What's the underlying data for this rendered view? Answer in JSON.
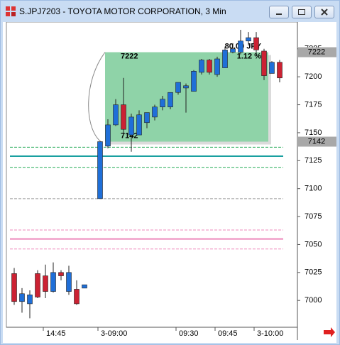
{
  "window": {
    "title": "S.JPJ7203 - TOYOTA MOTOR CORPORATION, 3 Min"
  },
  "chart_data": {
    "type": "candlestick",
    "categories": [
      null,
      null,
      null,
      null,
      "14:45",
      null,
      null,
      null,
      null,
      null,
      null,
      "3-09:00",
      null,
      null,
      null,
      null,
      null,
      null,
      null,
      null,
      null,
      "09:30",
      null,
      null,
      null,
      null,
      "09:45",
      null,
      null,
      null,
      null,
      "3-10:00",
      null,
      null,
      null
    ],
    "open": [
      7024,
      6999,
      6997,
      7024,
      7022,
      7008,
      7025,
      7008,
      7010,
      7011,
      null,
      7091,
      7138,
      7157,
      7175,
      7148,
      7148,
      7159,
      7164,
      7173,
      7173,
      7186,
      7190,
      7187,
      7204,
      7215,
      7202,
      7208,
      7222,
      7222,
      7232,
      7235,
      7223,
      7203,
      7213
    ],
    "high": [
      7029,
      7011,
      7009,
      7027,
      7032,
      7034,
      7027,
      7031,
      7018,
      7014,
      null,
      7142,
      7162,
      7180,
      7199,
      7167,
      7170,
      7168,
      7175,
      7183,
      7186,
      7195,
      7194,
      7206,
      7216,
      7216,
      7218,
      7227,
      7230,
      7242,
      7240,
      7240,
      7225,
      7214,
      7215
    ],
    "low": [
      6996,
      6989,
      6984,
      7002,
      7002,
      7007,
      7018,
      7005,
      6996,
      7011,
      null,
      7091,
      7136,
      7156,
      7148,
      7133,
      7148,
      7154,
      7161,
      7170,
      7171,
      7184,
      7168,
      7187,
      7202,
      7202,
      7200,
      7208,
      7221,
      7220,
      7228,
      7220,
      7197,
      7203,
      7195
    ],
    "close": [
      6999,
      7006,
      7005,
      7003,
      7008,
      7025,
      7022,
      7025,
      6997,
      7014,
      null,
      7142,
      7157,
      7175,
      7153,
      7164,
      7166,
      7168,
      7173,
      7180,
      7186,
      7195,
      7192,
      7205,
      7215,
      7204,
      7216,
      7224,
      7225,
      7232,
      7235,
      7224,
      7201,
      7213,
      7199
    ],
    "up_color": "#1f6fd8",
    "down_color": "#cc2233",
    "ylim": [
      6976,
      7249
    ],
    "yticks": [
      7000,
      7025,
      7050,
      7075,
      7100,
      7125,
      7150,
      7175,
      7200,
      7225
    ],
    "price_labels": [
      7222,
      7142
    ],
    "box": {
      "top": 7222,
      "bottom": 7142,
      "color": "#8fd3a8",
      "texts": [
        "80.00 JPY",
        "1.12 %"
      ]
    },
    "levels": [
      {
        "value": 7137,
        "color": "#22aa55",
        "dashed": true
      },
      {
        "value": 7129,
        "color": "#1aa0a0",
        "dashed": false
      },
      {
        "value": 7119,
        "color": "#22aa55",
        "dashed": true
      },
      {
        "value": 7091,
        "color": "#999999",
        "dashed": true
      },
      {
        "value": 7063,
        "color": "#ee88bb",
        "dashed": true
      },
      {
        "value": 7055,
        "color": "#ee88bb",
        "dashed": false
      },
      {
        "value": 7046,
        "color": "#ee88bb",
        "dashed": true
      }
    ]
  }
}
